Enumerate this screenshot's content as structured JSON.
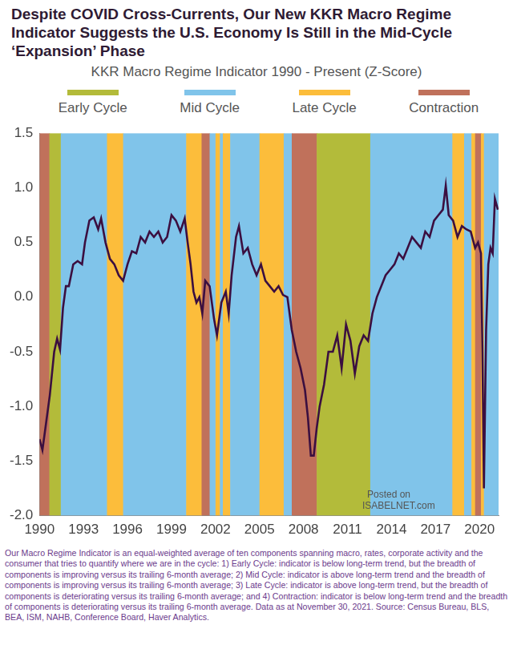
{
  "chart_data": {
    "type": "line",
    "title": "Despite COVID Cross-Currents, Our New KKR Macro Regime Indicator Suggests the U.S. Economy Is Still in the Mid-Cycle ‘Expansion’ Phase",
    "subtitle": "KKR Macro Regime Indicator 1990 - Present (Z-Score)",
    "footnote": "Our Macro Regime Indicator is an equal-weighted average of ten components spanning macro, rates, corporate activity and the consumer that tries to quantify where we are in the cycle: 1) Early Cycle: indicator is below long-term trend, but the breadth of components is improving versus its trailing 6-month average; 2) Mid Cycle: indicator is above long-term trend and the breadth of components is improving versus its trailing 6-month average; 3) Late Cycle: indicator is above long-term trend, but the breadth of components is deteriorating versus its trailing 6-month average; and 4) Contraction: indicator is below long-term trend and the breadth of components is deteriorating versus its trailing 6-month average. Data as at November 30, 2021. Source: Census Bureau, BLS, BEA, ISM, NAHB, Conference Board, Haver Analytics.",
    "watermark": [
      "Posted on",
      "ISABELNET.com"
    ],
    "color": "#3b0f40",
    "x": [
      1990.0,
      1990.2,
      1990.4,
      1990.7,
      1991.0,
      1991.2,
      1991.4,
      1991.6,
      1991.8,
      1992.0,
      1992.3,
      1992.6,
      1992.9,
      1993.1,
      1993.4,
      1993.7,
      1994.0,
      1994.2,
      1994.5,
      1994.8,
      1995.1,
      1995.4,
      1995.7,
      1996.0,
      1996.3,
      1996.6,
      1996.9,
      1997.2,
      1997.5,
      1997.8,
      1998.1,
      1998.4,
      1998.7,
      1999.0,
      1999.3,
      1999.6,
      1999.9,
      2000.1,
      2000.3,
      2000.5,
      2000.7,
      2000.9,
      2001.1,
      2001.3,
      2001.6,
      2001.9,
      2002.1,
      2002.4,
      2002.7,
      2002.9,
      2003.1,
      2003.4,
      2003.6,
      2003.9,
      2004.2,
      2004.5,
      2004.8,
      2005.1,
      2005.4,
      2005.7,
      2006.0,
      2006.3,
      2006.6,
      2006.9,
      2007.2,
      2007.5,
      2007.8,
      2008.1,
      2008.3,
      2008.5,
      2008.7,
      2008.9,
      2009.1,
      2009.4,
      2009.7,
      2010.0,
      2010.3,
      2010.6,
      2010.9,
      2011.2,
      2011.5,
      2011.8,
      2012.1,
      2012.4,
      2012.7,
      2013.0,
      2013.3,
      2013.6,
      2013.9,
      2014.2,
      2014.5,
      2014.8,
      2015.1,
      2015.4,
      2015.7,
      2016.0,
      2016.3,
      2016.6,
      2016.9,
      2017.2,
      2017.5,
      2017.7,
      2017.9,
      2018.2,
      2018.5,
      2018.8,
      2019.1,
      2019.4,
      2019.7,
      2019.9,
      2020.1,
      2020.2,
      2020.3,
      2020.45,
      2020.6,
      2020.75,
      2020.9,
      2021.05,
      2021.15,
      2021.25
    ],
    "values": [
      -1.3,
      -1.4,
      -1.2,
      -0.9,
      -0.5,
      -0.38,
      -0.48,
      -0.1,
      0.1,
      0.1,
      0.3,
      0.33,
      0.3,
      0.5,
      0.7,
      0.73,
      0.62,
      0.72,
      0.5,
      0.35,
      0.3,
      0.2,
      0.15,
      0.3,
      0.42,
      0.4,
      0.55,
      0.5,
      0.6,
      0.55,
      0.6,
      0.5,
      0.55,
      0.75,
      0.7,
      0.6,
      0.72,
      0.5,
      0.3,
      0.05,
      -0.05,
      0.0,
      -0.15,
      0.15,
      0.1,
      -0.2,
      -0.35,
      -0.05,
      0.05,
      -0.15,
      0.2,
      0.55,
      0.65,
      0.4,
      0.45,
      0.3,
      0.2,
      0.3,
      0.15,
      0.1,
      0.05,
      0.1,
      0.02,
      0.0,
      -0.3,
      -0.5,
      -0.65,
      -0.85,
      -1.1,
      -1.45,
      -1.45,
      -1.2,
      -1.0,
      -0.8,
      -0.5,
      -0.5,
      -0.35,
      -0.65,
      -0.25,
      -0.4,
      -0.7,
      -0.45,
      -0.35,
      -0.4,
      -0.15,
      0.0,
      0.1,
      0.2,
      0.25,
      0.3,
      0.4,
      0.35,
      0.45,
      0.55,
      0.5,
      0.45,
      0.6,
      0.55,
      0.7,
      0.75,
      0.8,
      1.02,
      0.75,
      0.7,
      0.55,
      0.65,
      0.62,
      0.6,
      0.45,
      0.5,
      0.4,
      -0.5,
      -1.75,
      -0.3,
      0.3,
      0.45,
      0.4,
      0.9,
      0.85,
      0.8
    ],
    "regimes": [
      {
        "name": "Early Cycle",
        "color": "#b3bb3a"
      },
      {
        "name": "Mid Cycle",
        "color": "#80c4ea"
      },
      {
        "name": "Late Cycle",
        "color": "#fcbd3b"
      },
      {
        "name": "Contraction",
        "color": "#c0715b"
      }
    ],
    "bands": [
      {
        "start": 1990.0,
        "end": 1990.67,
        "regime": "Contraction"
      },
      {
        "start": 1990.67,
        "end": 1991.45,
        "regime": "Early Cycle"
      },
      {
        "start": 1991.45,
        "end": 1994.6,
        "regime": "Mid Cycle"
      },
      {
        "start": 1994.6,
        "end": 1995.7,
        "regime": "Late Cycle"
      },
      {
        "start": 1995.7,
        "end": 2000.0,
        "regime": "Mid Cycle"
      },
      {
        "start": 2000.0,
        "end": 2001.05,
        "regime": "Late Cycle"
      },
      {
        "start": 2001.05,
        "end": 2001.6,
        "regime": "Contraction"
      },
      {
        "start": 2001.6,
        "end": 2002.0,
        "regime": "Mid Cycle"
      },
      {
        "start": 2002.0,
        "end": 2002.3,
        "regime": "Late Cycle"
      },
      {
        "start": 2002.3,
        "end": 2002.5,
        "regime": "Mid Cycle"
      },
      {
        "start": 2002.5,
        "end": 2003.0,
        "regime": "Late Cycle"
      },
      {
        "start": 2003.0,
        "end": 2005.0,
        "regime": "Mid Cycle"
      },
      {
        "start": 2005.0,
        "end": 2006.65,
        "regime": "Late Cycle"
      },
      {
        "start": 2006.65,
        "end": 2007.2,
        "regime": "Mid Cycle"
      },
      {
        "start": 2007.2,
        "end": 2008.9,
        "regime": "Contraction"
      },
      {
        "start": 2008.9,
        "end": 2012.55,
        "regime": "Early Cycle"
      },
      {
        "start": 2012.55,
        "end": 2018.15,
        "regime": "Mid Cycle"
      },
      {
        "start": 2018.15,
        "end": 2018.95,
        "regime": "Late Cycle"
      },
      {
        "start": 2018.95,
        "end": 2019.45,
        "regime": "Mid Cycle"
      },
      {
        "start": 2019.45,
        "end": 2019.7,
        "regime": "Late Cycle"
      },
      {
        "start": 2019.7,
        "end": 2020.1,
        "regime": "Contraction"
      },
      {
        "start": 2020.1,
        "end": 2020.3,
        "regime": "Late Cycle"
      },
      {
        "start": 2020.3,
        "end": 2021.3,
        "regime": "Mid Cycle"
      }
    ],
    "xlim": [
      1990,
      2021.3
    ],
    "xticks": [
      1990,
      1993,
      1996,
      1999,
      2002,
      2005,
      2008,
      2011,
      2014,
      2017,
      2020
    ],
    "ylim": [
      -2.0,
      1.5
    ],
    "yticks": [
      {
        "value": -2.0,
        "label": "-2.0"
      },
      -1.5,
      {
        "value": -1.0,
        "label": "-1.0"
      },
      -0.5,
      {
        "value": 0.0,
        "label": "0.0"
      },
      0.5,
      {
        "value": 1.0,
        "label": "1.0"
      },
      1.5
    ],
    "grid": false
  }
}
